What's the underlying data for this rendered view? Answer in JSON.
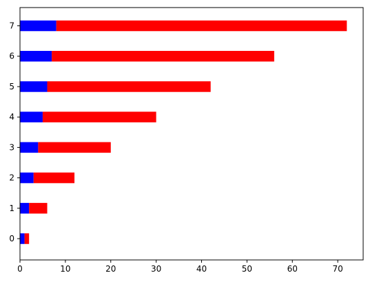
{
  "colors": {
    "series_1": "#0000ff",
    "series_2": "#ff0000"
  },
  "chart_data": {
    "type": "bar",
    "orientation": "horizontal",
    "stacked": true,
    "categories": [
      "0",
      "1",
      "2",
      "3",
      "4",
      "5",
      "6",
      "7"
    ],
    "series": [
      {
        "values": [
          1,
          2,
          3,
          4,
          5,
          6,
          7,
          8
        ],
        "color": "#0000ff"
      },
      {
        "values": [
          1,
          4,
          9,
          16,
          25,
          36,
          49,
          64
        ],
        "color": "#ff0000"
      }
    ],
    "xlim": [
      0,
      75.6
    ],
    "x_ticks": [
      "0",
      "10",
      "20",
      "30",
      "40",
      "50",
      "60",
      "70"
    ],
    "title": "",
    "xlabel": "",
    "ylabel": "",
    "grid": false,
    "legend": false
  }
}
